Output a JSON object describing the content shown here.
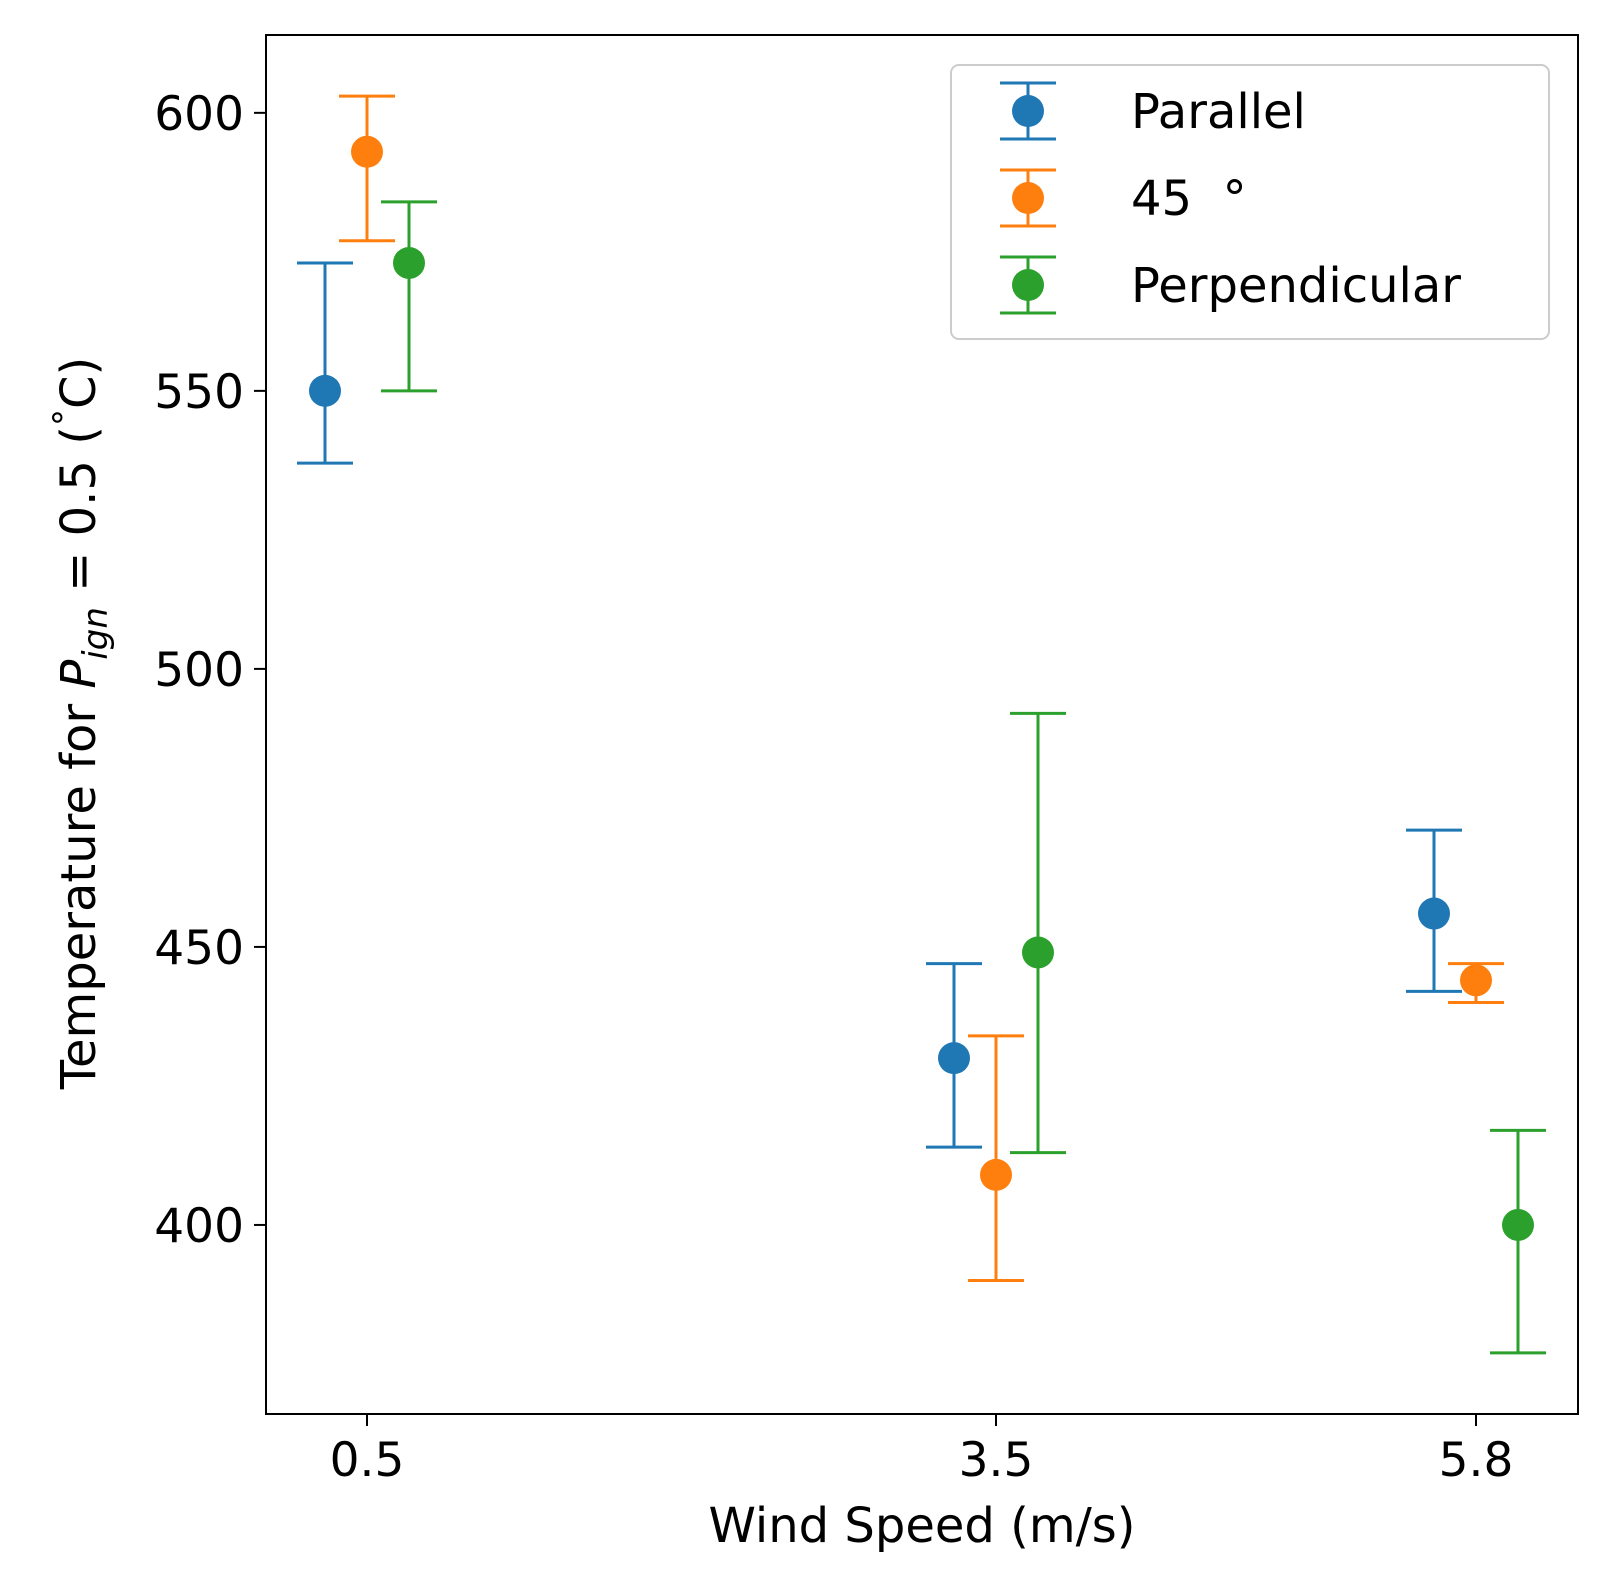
{
  "chart_data": {
    "type": "scatter",
    "subtype": "errorbar",
    "title": "",
    "xlabel": "Wind Speed (m/s)",
    "ylabel": {
      "prefix": "Temperature for ",
      "symbol": "P",
      "subscript": "ign",
      "suffix": " = 0.5 (",
      "degree": "°",
      "unit_end": "C)"
    },
    "x_categories": [
      "0.5",
      "3.5",
      "5.8"
    ],
    "ylim": [
      366,
      614
    ],
    "yticks": [
      400,
      450,
      500,
      550,
      600
    ],
    "ytick_labels": [
      "400",
      "450",
      "500",
      "550",
      "600"
    ],
    "grid": false,
    "legend": {
      "position": "top-right"
    },
    "series": [
      {
        "name": "Parallel",
        "legend_label": "Parallel",
        "color": "#1f77b4",
        "values": [
          550,
          430,
          456
        ],
        "lower": [
          537,
          414,
          442
        ],
        "upper": [
          573,
          447,
          471
        ]
      },
      {
        "name": "45 °",
        "legend_label": "45  °",
        "color": "#ff7f0e",
        "values": [
          593,
          409,
          444
        ],
        "lower": [
          577,
          390,
          440
        ],
        "upper": [
          603,
          434,
          447
        ]
      },
      {
        "name": "Perpendicular",
        "legend_label": "Perpendicular",
        "color": "#2ca02c",
        "values": [
          573,
          449,
          400
        ],
        "lower": [
          550,
          413,
          377
        ],
        "upper": [
          584,
          492,
          417
        ]
      }
    ]
  }
}
